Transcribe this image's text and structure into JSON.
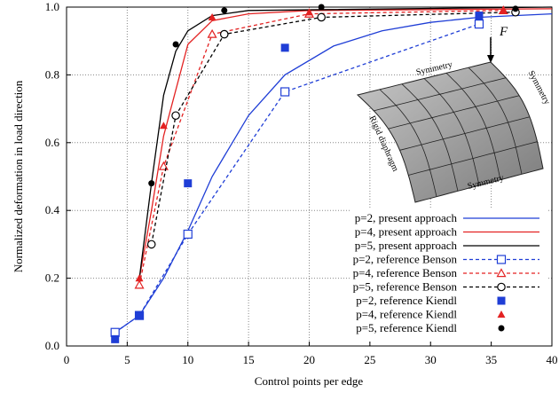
{
  "chart_data": {
    "type": "line",
    "x_label": "Control points per edge",
    "y_label": "Normalized deformation in load direction",
    "xlim": [
      0,
      40
    ],
    "ylim": [
      0,
      1
    ],
    "xticks": [
      0,
      5,
      10,
      15,
      20,
      25,
      30,
      35,
      40
    ],
    "yticks": [
      {
        "value": 0,
        "label": "0.0"
      },
      0.2,
      0.4,
      0.6,
      0.8,
      {
        "value": 1,
        "label": "1.0"
      }
    ],
    "grid": true,
    "legend": "lower right",
    "series": [
      {
        "name": "p=2, present approach",
        "color": "#1f3ed6",
        "style": "solid",
        "x": [
          4,
          6,
          8,
          10,
          12,
          15,
          18,
          22,
          26,
          30,
          34,
          40
        ],
        "values": [
          0.04,
          0.09,
          0.2,
          0.34,
          0.5,
          0.68,
          0.8,
          0.885,
          0.93,
          0.955,
          0.97,
          0.98
        ]
      },
      {
        "name": "p=4, present approach",
        "color": "#e32222",
        "style": "solid",
        "x": [
          6,
          7,
          8,
          10,
          12,
          15,
          20,
          40
        ],
        "values": [
          0.2,
          0.4,
          0.62,
          0.89,
          0.96,
          0.98,
          0.99,
          0.995
        ]
      },
      {
        "name": "p=5, present approach",
        "color": "#000000",
        "style": "solid",
        "x": [
          6,
          7,
          8,
          9,
          10,
          12,
          15,
          40
        ],
        "values": [
          0.2,
          0.48,
          0.74,
          0.87,
          0.93,
          0.975,
          0.99,
          1
        ]
      },
      {
        "name": "p=2, reference Benson",
        "color": "#1f3ed6",
        "style": "dashed",
        "marker": "square",
        "x": [
          4,
          6,
          10,
          18,
          34
        ],
        "values": [
          0.04,
          0.09,
          0.33,
          0.75,
          0.95
        ]
      },
      {
        "name": "p=4, reference Benson",
        "color": "#e32222",
        "style": "dashed",
        "marker": "triangle",
        "x": [
          6,
          8,
          12,
          20,
          36
        ],
        "values": [
          0.18,
          0.53,
          0.92,
          0.98,
          0.99
        ]
      },
      {
        "name": "p=5, reference Benson",
        "color": "#000000",
        "style": "dashed",
        "marker": "circle",
        "x": [
          7,
          9,
          13,
          21,
          37
        ],
        "values": [
          0.3,
          0.68,
          0.92,
          0.97,
          0.985
        ]
      },
      {
        "name": "p=2, reference Kiendl",
        "color": "#1f3ed6",
        "style": "none",
        "marker": "filled-square",
        "x": [
          4,
          6,
          10,
          18,
          34
        ],
        "values": [
          0.02,
          0.09,
          0.48,
          0.88,
          0.975
        ]
      },
      {
        "name": "p=4, reference Kiendl",
        "color": "#e32222",
        "style": "none",
        "marker": "filled-triangle",
        "x": [
          6,
          8,
          12,
          20,
          36
        ],
        "values": [
          0.2,
          0.65,
          0.97,
          0.985,
          0.99
        ]
      },
      {
        "name": "p=5, reference Kiendl",
        "color": "#000000",
        "style": "none",
        "marker": "filled-circle",
        "x": [
          7,
          9,
          13,
          21,
          37
        ],
        "values": [
          0.48,
          0.89,
          0.99,
          1,
          0.995
        ]
      }
    ],
    "annotations": [
      "F",
      "Symmetry",
      "Symmetry",
      "Rigid diaphragm",
      "Symmetry"
    ]
  }
}
